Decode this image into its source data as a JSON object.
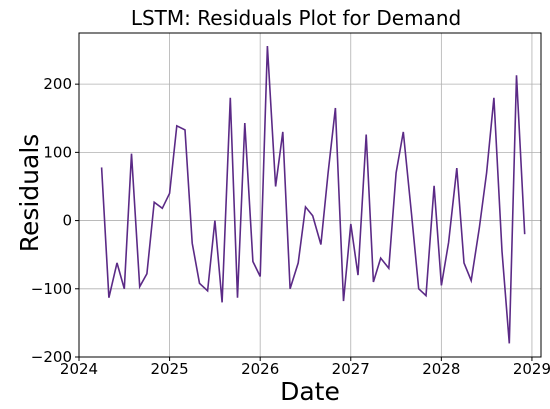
{
  "chart_data": {
    "type": "line",
    "title": "LSTM: Residuals Plot for Demand",
    "xlabel": "Date",
    "ylabel": "Residuals",
    "x_tick_labels": [
      "2024",
      "2025",
      "2026",
      "2027",
      "2028",
      "2029"
    ],
    "x_tick_values": [
      2024.0,
      2025.0,
      2026.0,
      2027.0,
      2028.0,
      2029.0
    ],
    "y_tick_labels": [
      "200",
      "100",
      "0",
      "−100",
      "−200"
    ],
    "y_tick_values": [
      200,
      100,
      0,
      -100,
      -200
    ],
    "xlim": [
      2024.0,
      2029.1
    ],
    "ylim": [
      -200,
      275
    ],
    "grid": true,
    "line_color": "#5b2a86",
    "series": [
      {
        "x": [
          2024.25,
          2024.33,
          2024.42,
          2024.5,
          2024.58,
          2024.67,
          2024.75,
          2024.83,
          2024.92,
          2025.0,
          2025.08,
          2025.17,
          2025.25,
          2025.33,
          2025.42,
          2025.5,
          2025.58,
          2025.67,
          2025.75,
          2025.83,
          2025.92,
          2026.0,
          2026.08,
          2026.17,
          2026.25,
          2026.33,
          2026.42,
          2026.5,
          2026.58,
          2026.67,
          2026.75,
          2026.83,
          2026.92,
          2027.0,
          2027.08,
          2027.17,
          2027.25,
          2027.33,
          2027.42,
          2027.5,
          2027.58,
          2027.67,
          2027.75,
          2027.83,
          2027.92,
          2028.0,
          2028.08,
          2028.17,
          2028.25,
          2028.33,
          2028.42,
          2028.5,
          2028.58,
          2028.67,
          2028.75,
          2028.83,
          2028.92
        ],
        "values": [
          78,
          -113,
          -62,
          -100,
          98,
          -97,
          -78,
          27,
          18,
          40,
          139,
          133,
          -33,
          -92,
          -103,
          0,
          -120,
          180,
          -113,
          143,
          -60,
          -82,
          256,
          50,
          130,
          -100,
          -62,
          20,
          7,
          -35,
          70,
          165,
          -118,
          -5,
          -80,
          126,
          -90,
          -55,
          -70,
          70,
          130,
          10,
          -100,
          -110,
          51,
          -95,
          -32,
          77,
          -62,
          -88,
          -10,
          70,
          180,
          -45,
          -180,
          213,
          -20
        ]
      }
    ]
  }
}
